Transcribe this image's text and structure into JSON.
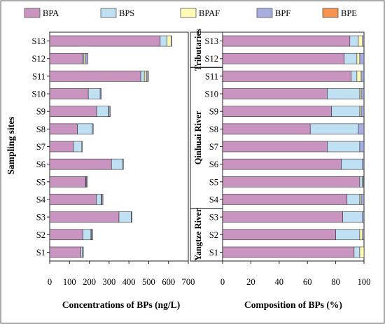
{
  "chart_data": [
    {
      "type": "bar",
      "orientation": "horizontal",
      "stacked": true,
      "categories": [
        "S1",
        "S2",
        "S3",
        "S4",
        "S5",
        "S6",
        "S7",
        "S8",
        "S9",
        "S10",
        "S11",
        "S12",
        "S13"
      ],
      "series": [
        {
          "name": "BPA",
          "values": [
            158,
            168,
            350,
            235,
            182,
            312,
            120,
            140,
            237,
            195,
            460,
            168,
            558
          ]
        },
        {
          "name": "BPS",
          "values": [
            8,
            40,
            62,
            25,
            2,
            58,
            42,
            75,
            60,
            60,
            18,
            5,
            35
          ]
        },
        {
          "name": "BPAF",
          "values": [
            0,
            3,
            0,
            3,
            1,
            0,
            0,
            0,
            3,
            0,
            10,
            8,
            20
          ]
        },
        {
          "name": "BPF",
          "values": [
            4,
            6,
            4,
            6,
            5,
            2,
            2,
            5,
            6,
            6,
            8,
            12,
            3
          ]
        },
        {
          "name": "BPE",
          "values": [
            0,
            0,
            0,
            0,
            0,
            0,
            0,
            0,
            0,
            0,
            2,
            0,
            0
          ]
        }
      ],
      "xlabel": "Concentrations of BPs (ng/L)",
      "ylabel": "Sampling sites",
      "xlim": [
        0,
        700
      ],
      "xticks": [
        0,
        100,
        200,
        300,
        400,
        500,
        600,
        700
      ],
      "grid": false
    },
    {
      "type": "bar",
      "orientation": "horizontal",
      "stacked": true,
      "categories": [
        "S1",
        "S2",
        "S3",
        "S4",
        "S5",
        "S6",
        "S7",
        "S8",
        "S9",
        "S10",
        "S11",
        "S12",
        "S13"
      ],
      "series": [
        {
          "name": "BPA",
          "values": [
            93,
            80,
            85,
            88,
            97,
            84,
            74,
            62,
            77,
            74,
            91,
            86,
            90
          ]
        },
        {
          "name": "BPS",
          "values": [
            4,
            17,
            14,
            9,
            2,
            15,
            23,
            34,
            20,
            23,
            4,
            9,
            6
          ]
        },
        {
          "name": "BPAF",
          "values": [
            3,
            2,
            0,
            1,
            0.5,
            0,
            0,
            0,
            1,
            1,
            3,
            2,
            3
          ]
        },
        {
          "name": "BPF",
          "values": [
            0,
            1,
            1,
            2,
            0.5,
            1,
            3,
            4,
            2,
            2,
            2,
            3,
            1
          ]
        },
        {
          "name": "BPE",
          "values": [
            0,
            0,
            0,
            0,
            0,
            0,
            0,
            0,
            0,
            0,
            0,
            0,
            0
          ]
        }
      ],
      "xlabel": "Composition of BPs (%)",
      "xlim": [
        0,
        100
      ],
      "xticks": [
        0,
        20,
        40,
        60,
        80,
        100
      ],
      "grid": false,
      "region_labels": [
        {
          "label": "Tributaries",
          "from": "S12",
          "to": "S13"
        },
        {
          "label": "Qinhuai River",
          "from": "S4",
          "to": "S11"
        },
        {
          "label": "Yangtze River",
          "from": "S1",
          "to": "S3"
        }
      ]
    }
  ],
  "legend": {
    "placement": "top",
    "items": [
      {
        "name": "BPA",
        "color": "#c994c0"
      },
      {
        "name": "BPS",
        "color": "#bfe0f2"
      },
      {
        "name": "BPAF",
        "color": "#fffbb6"
      },
      {
        "name": "BPF",
        "color": "#a6aee0"
      },
      {
        "name": "BPE",
        "color": "#f6914f"
      }
    ]
  }
}
